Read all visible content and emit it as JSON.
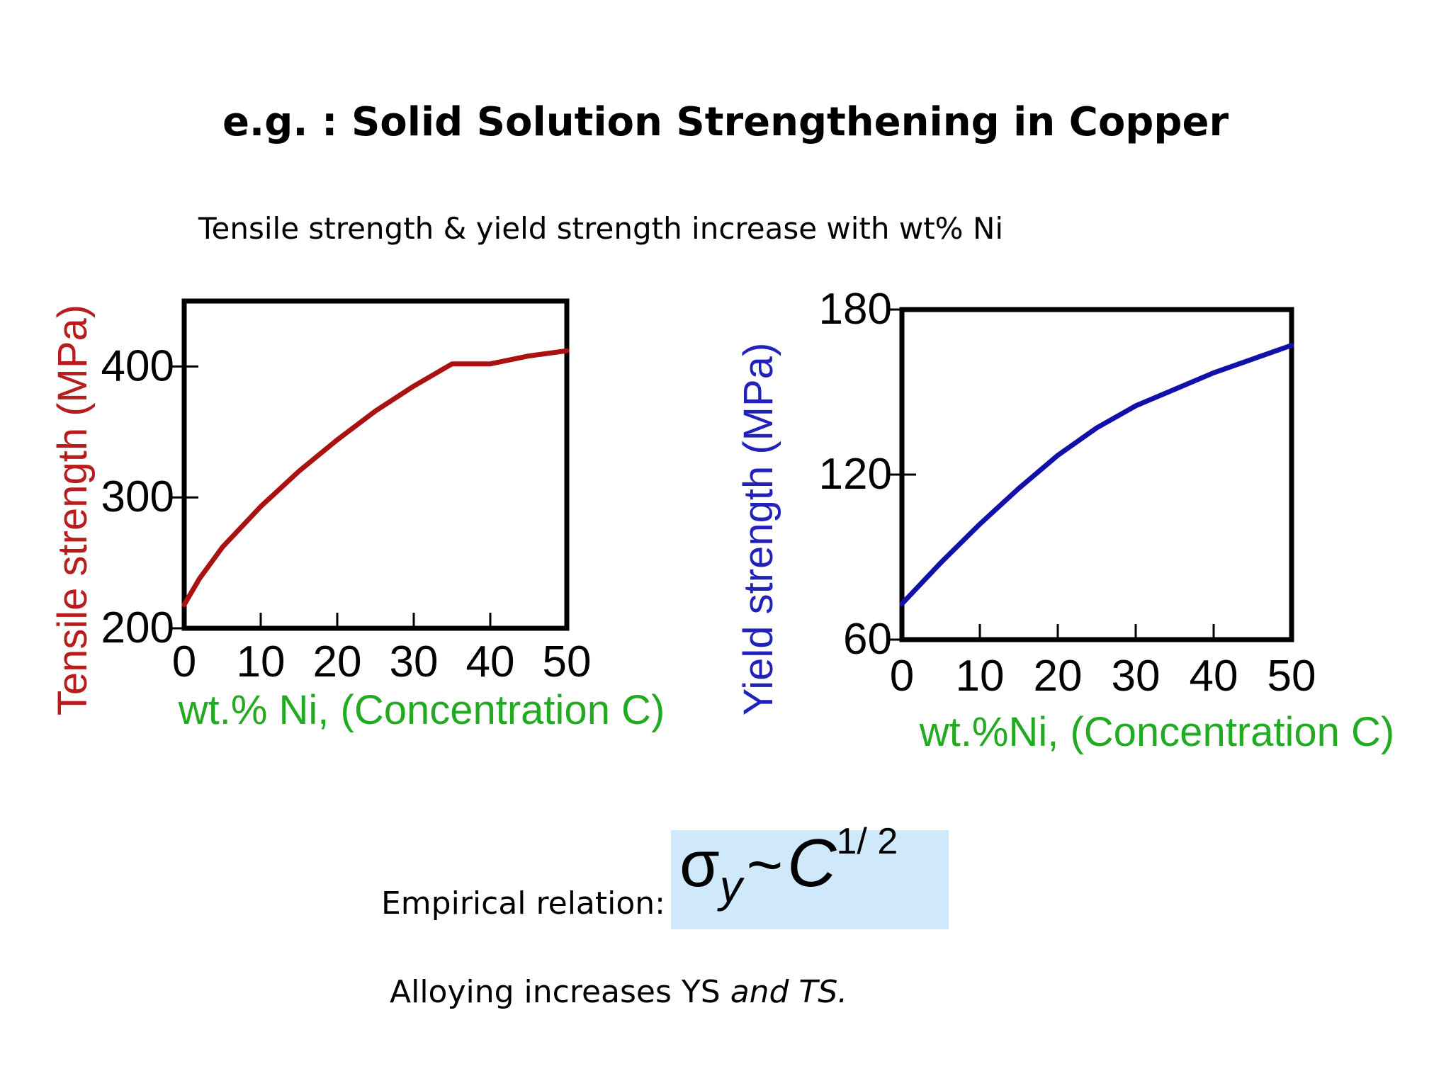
{
  "slide": {
    "title": "e.g. : Solid Solution Strengthening in Copper",
    "subtitle": "Tensile strength & yield strength increase with wt% Ni",
    "empirical_label": "Empirical relation:",
    "formula": {
      "sigma": "σ",
      "subscript": "y",
      "tilde": "~",
      "variable": "C",
      "exponent": "1/ 2"
    },
    "conclusion_prefix": "Alloying increases YS ",
    "conclusion_italic": "and TS."
  },
  "chart_data": [
    {
      "type": "line",
      "title": "",
      "xlabel": "wt.% Ni, (Concentration C)",
      "ylabel": "Tensile strength (MPa)",
      "xlim": [
        0,
        50
      ],
      "ylim": [
        200,
        450
      ],
      "xticks": [
        0,
        10,
        20,
        30,
        40,
        50
      ],
      "yticks": [
        200,
        300,
        400
      ],
      "grid": false,
      "colors": {
        "series": "#aa1111",
        "ylabel": "#b81c1c",
        "xlabel": "#22aa22"
      },
      "series": [
        {
          "x": [
            0,
            2,
            5,
            10,
            15,
            20,
            25,
            30,
            35,
            40,
            45,
            50
          ],
          "values": [
            218,
            238,
            262,
            293,
            320,
            344,
            366,
            385,
            402,
            402,
            408,
            412
          ]
        }
      ]
    },
    {
      "type": "line",
      "title": "",
      "xlabel": "wt.%Ni, (Concentration C)",
      "ylabel": "Yield strength (MPa)",
      "xlim": [
        0,
        50
      ],
      "ylim": [
        60,
        180
      ],
      "xticks": [
        0,
        10,
        20,
        30,
        40,
        50
      ],
      "yticks": [
        60,
        120,
        180
      ],
      "grid": false,
      "colors": {
        "series": "#1111aa",
        "ylabel": "#2222bb",
        "xlabel": "#22aa22"
      },
      "series": [
        {
          "x": [
            0,
            5,
            10,
            15,
            20,
            25,
            30,
            35,
            40,
            45,
            50
          ],
          "values": [
            73,
            88,
            102,
            115,
            127,
            137,
            145,
            151,
            157,
            162,
            167
          ]
        }
      ]
    }
  ]
}
